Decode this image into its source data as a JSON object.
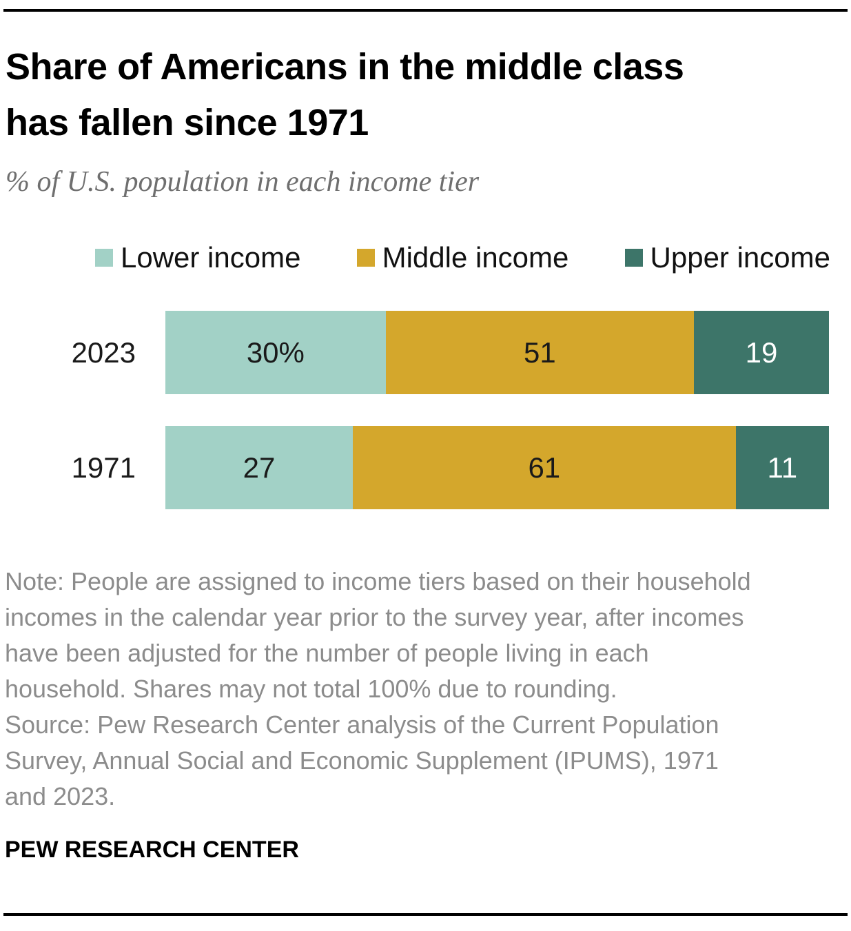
{
  "header": {
    "title": "Share of Americans in the middle class\nhas fallen since 1971",
    "subtitle": "% of U.S. population in each income tier"
  },
  "chart_data": {
    "type": "bar",
    "orientation": "horizontal",
    "stacked": true,
    "title": "Share of Americans in the middle class has fallen since 1971",
    "subtitle": "% of U.S. population in each income tier",
    "categories": [
      "2023",
      "1971"
    ],
    "series": [
      {
        "name": "Lower income",
        "color": "#a2d1c6",
        "label_color": "#1a1a1a",
        "values": [
          30,
          27
        ]
      },
      {
        "name": "Middle income",
        "color": "#d4a72c",
        "label_color": "#1a1a1a",
        "values": [
          51,
          61
        ]
      },
      {
        "name": "Upper income",
        "color": "#3d7569",
        "label_color": "#ffffff",
        "values": [
          19,
          11
        ]
      }
    ],
    "value_labels": [
      [
        "30%",
        "51",
        "19"
      ],
      [
        "27",
        "61",
        "11"
      ]
    ],
    "xlim": [
      0,
      100
    ],
    "grid": false,
    "legend_position": "top"
  },
  "footer": {
    "note": "Note: People are assigned to income tiers based on their household\nincomes in the calendar year prior to the survey year, after incomes\nhave been adjusted for the number of people living in each\nhousehold. Shares may not total 100% due to rounding.",
    "source": "Source: Pew Research Center analysis of the Current Population\nSurvey, Annual Social and Economic Supplement (IPUMS), 1971\nand 2023.",
    "brand": "PEW RESEARCH CENTER"
  }
}
